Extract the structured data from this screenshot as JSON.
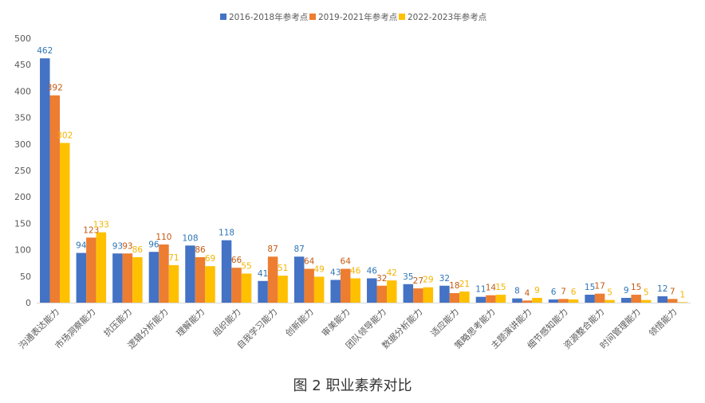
{
  "chart_data": {
    "type": "bar",
    "categories": [
      "沟通表达能力",
      "市场洞察能力",
      "抗压能力",
      "逻辑分析能力",
      "理解能力",
      "组织能力",
      "自我学习能力",
      "创新能力",
      "审美能力",
      "团队领导能力",
      "数据分析能力",
      "适应能力",
      "策略思考能力",
      "主题演讲能力",
      "细节感知能力",
      "资源整合能力",
      "时间管理能力",
      "领悟能力"
    ],
    "series": [
      {
        "name": "2016-2018年参考点",
        "color": "#4472c4",
        "label_color": "#2e75b6",
        "values": [
          462,
          94,
          93,
          96,
          108,
          118,
          41,
          87,
          43,
          46,
          35,
          32,
          11,
          8,
          6,
          15,
          9,
          12
        ]
      },
      {
        "name": "2019-2021年参考点",
        "color": "#ed7d31",
        "label_color": "#c55a11",
        "values": [
          392,
          123,
          93,
          110,
          86,
          66,
          87,
          64,
          64,
          32,
          27,
          18,
          14,
          4,
          7,
          17,
          15,
          7
        ]
      },
      {
        "name": "2022-2023年参考点",
        "color": "#ffc000",
        "label_color": "#f4b400",
        "values": [
          302,
          133,
          86,
          71,
          69,
          55,
          51,
          49,
          46,
          42,
          29,
          21,
          15,
          9,
          6,
          5,
          5,
          1
        ]
      }
    ],
    "ylim": [
      0,
      500
    ],
    "yticks": [
      0,
      50,
      100,
      150,
      200,
      250,
      300,
      350,
      400,
      450,
      500
    ],
    "grid": false,
    "legend_position": "top",
    "caption": "图 2 职业素养对比"
  }
}
